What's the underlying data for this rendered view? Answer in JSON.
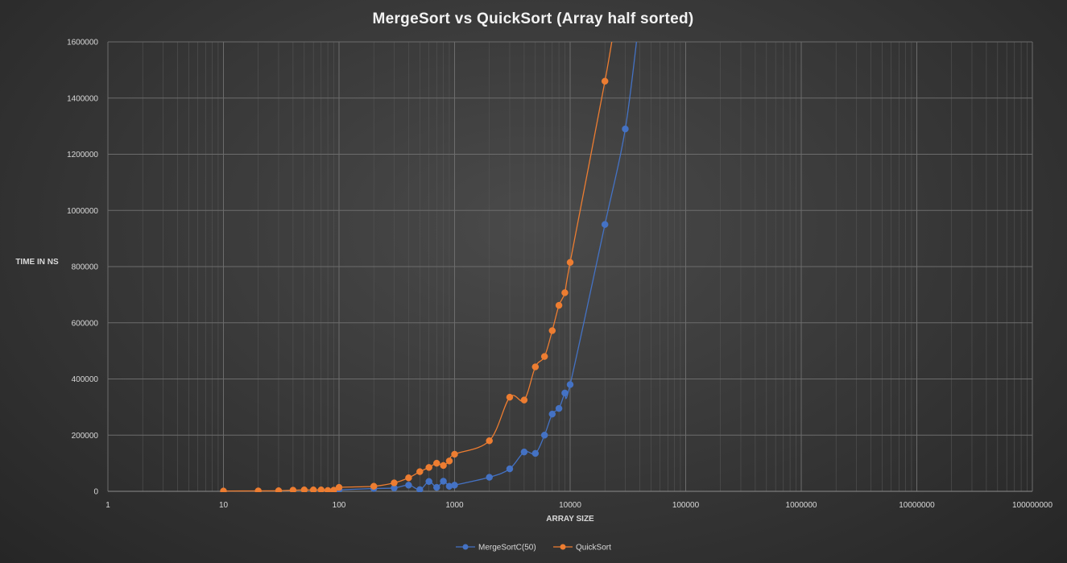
{
  "chart_data": {
    "type": "scatter",
    "title": "MergeSort  vs QuickSort  (Array half sorted)",
    "xlabel": "ARRAY SIZE",
    "ylabel": "TIME IN NS",
    "x_scale": "log",
    "xlim": [
      1,
      100000000
    ],
    "ylim": [
      0,
      1600000
    ],
    "x_ticks": [
      1,
      10,
      100,
      1000,
      10000,
      100000,
      1000000,
      10000000,
      100000000
    ],
    "x_tick_labels": [
      "1",
      "10",
      "100",
      "1000",
      "10000",
      "100000",
      "1000000",
      "10000000",
      "100000000"
    ],
    "y_ticks": [
      0,
      200000,
      400000,
      600000,
      800000,
      1000000,
      1200000,
      1400000,
      1600000
    ],
    "y_tick_labels": [
      "0",
      "200000",
      "400000",
      "600000",
      "800000",
      "1000000",
      "1200000",
      "1400000",
      "1600000"
    ],
    "grid": true,
    "legend_position": "bottom",
    "series": [
      {
        "name": "MergeSortC(50)",
        "color": "#4472c4",
        "x": [
          100,
          200,
          300,
          400,
          500,
          600,
          700,
          800,
          900,
          1000,
          2000,
          3000,
          4000,
          5000,
          6000,
          7000,
          8000,
          9000,
          10000,
          20000,
          30000,
          40000
        ],
        "y": [
          5000,
          10000,
          12000,
          22000,
          6000,
          35000,
          14000,
          36000,
          18000,
          22000,
          50000,
          80000,
          140000,
          135000,
          200000,
          275000,
          295000,
          350000,
          380000,
          950000,
          1290000,
          1700000
        ],
        "markers": [
          true,
          true,
          true,
          true,
          true,
          true,
          true,
          true,
          true,
          true,
          true,
          true,
          true,
          true,
          true,
          true,
          true,
          true,
          true,
          true,
          true,
          false
        ]
      },
      {
        "name": "QuickSort",
        "color": "#ed7d31",
        "x": [
          10,
          20,
          30,
          40,
          50,
          60,
          70,
          80,
          90,
          100,
          200,
          300,
          400,
          500,
          600,
          700,
          800,
          900,
          1000,
          2000,
          3000,
          4000,
          5000,
          6000,
          7000,
          8000,
          9000,
          10000,
          20000,
          25000
        ],
        "y": [
          1000,
          1500,
          2000,
          4000,
          5000,
          5000,
          5000,
          3000,
          4000,
          14000,
          18000,
          30000,
          48000,
          70000,
          85000,
          100000,
          92000,
          108000,
          132000,
          180000,
          335000,
          325000,
          443000,
          480000,
          572000,
          662000,
          707000,
          815000,
          1460000,
          1700000
        ],
        "markers": [
          true,
          true,
          true,
          true,
          true,
          true,
          true,
          true,
          true,
          true,
          true,
          true,
          true,
          true,
          true,
          true,
          true,
          true,
          true,
          true,
          true,
          true,
          true,
          true,
          true,
          true,
          true,
          true,
          true,
          false
        ]
      }
    ]
  }
}
